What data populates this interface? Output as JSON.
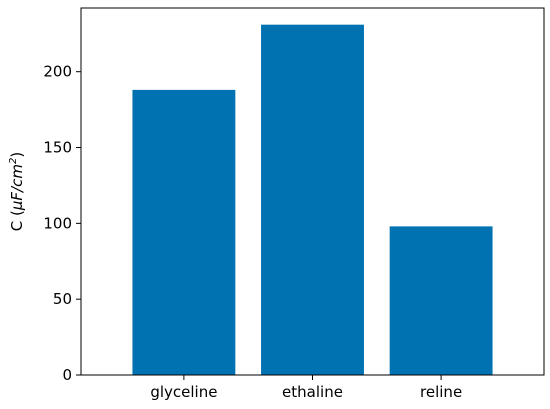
{
  "chart_data": {
    "type": "bar",
    "categories": [
      "glyceline",
      "ethaline",
      "reline"
    ],
    "values": [
      188,
      231,
      98
    ],
    "title": "",
    "xlabel": "",
    "ylabel": "C (μF/cm²)",
    "ylabel_parts": {
      "prefix": "C (",
      "unit": "μF/cm",
      "exponent": "2",
      "suffix": ")"
    },
    "ylim": [
      0,
      242
    ],
    "yticks": [
      0,
      50,
      100,
      150,
      200
    ],
    "bar_color": "#0072b2",
    "grid": false,
    "legend": "none"
  }
}
